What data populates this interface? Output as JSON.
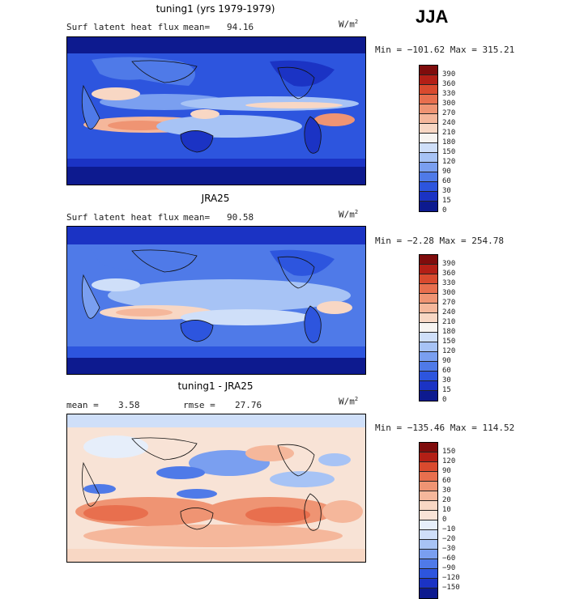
{
  "season": "JJA",
  "colors": {
    "abs_scale": [
      "#0d1a8f",
      "#1b33c4",
      "#2d55de",
      "#4f7ae8",
      "#7a9ff0",
      "#a7c3f5",
      "#cfdff9",
      "#f7f4f1",
      "#f8d7c4",
      "#f5b79b",
      "#ef9473",
      "#e86f4e",
      "#d94a2e",
      "#b31f16",
      "#7f0c0c"
    ],
    "diff_scale": [
      "#0d1a8f",
      "#1b33c4",
      "#2d55de",
      "#4f7ae8",
      "#7a9ff0",
      "#a7c3f5",
      "#cfdff9",
      "#e6eefa",
      "#f8e3d6",
      "#f8d7c4",
      "#f5b79b",
      "#ef9473",
      "#e86f4e",
      "#d94a2e",
      "#b31f16",
      "#7f0c0c"
    ]
  },
  "panels": [
    {
      "title": "tuning1 (yrs 1979-1979)",
      "variable": "Surf latent heat flux",
      "mean_label": "mean=",
      "mean": "94.16",
      "units": "W/m",
      "units_exp": "2",
      "minmax": "Min = −101.62 Max = 315.21",
      "levels": [
        "390",
        "360",
        "330",
        "300",
        "270",
        "240",
        "210",
        "180",
        "150",
        "120",
        "90",
        "60",
        "30",
        "15",
        "0"
      ]
    },
    {
      "title": "JRA25",
      "variable": "Surf latent heat flux",
      "mean_label": "mean=",
      "mean": "90.58",
      "units": "W/m",
      "units_exp": "2",
      "minmax": "Min =   −2.28 Max = 254.78",
      "levels": [
        "390",
        "360",
        "330",
        "300",
        "270",
        "240",
        "210",
        "180",
        "150",
        "120",
        "90",
        "60",
        "30",
        "15",
        "0"
      ]
    },
    {
      "title": "tuning1 - JRA25",
      "mean_label": "mean =",
      "mean": "3.58",
      "rmse_label": "rmse =",
      "rmse": "27.76",
      "units": "W/m",
      "units_exp": "2",
      "minmax": "Min = −135.46 Max = 114.52",
      "levels": [
        "150",
        "120",
        "90",
        "60",
        "30",
        "20",
        "10",
        "0",
        "−10",
        "−20",
        "−30",
        "−60",
        "−90",
        "−120",
        "−150"
      ]
    }
  ]
}
